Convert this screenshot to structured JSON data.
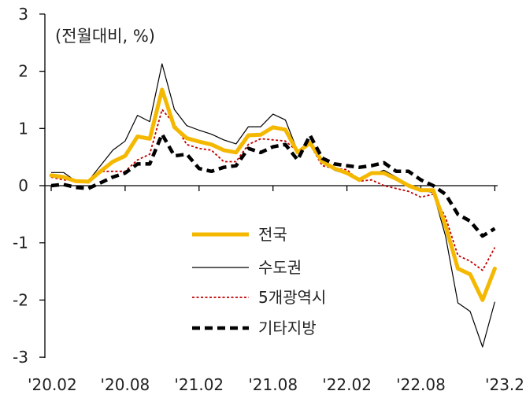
{
  "chart_data": {
    "type": "line",
    "unit_label": "(전월대비, %)",
    "y_ticks": [
      "3",
      "2",
      "1",
      "0",
      "-1",
      "-2",
      "-3"
    ],
    "y_tick_values": [
      3,
      2,
      1,
      0,
      -1,
      -2,
      -3
    ],
    "ylim": [
      -3,
      3
    ],
    "x_tick_labels": [
      "'20.02",
      "'20.08",
      "'21.02",
      "'21.08",
      "'22.02",
      "'22.08",
      "'23.2"
    ],
    "x_tick_index": [
      0,
      6,
      12,
      18,
      24,
      30,
      36
    ],
    "legend_position": "center",
    "series": [
      {
        "name": "전국",
        "style": "thick-solid",
        "color": "#F5B800",
        "values": [
          0.18,
          0.15,
          0.08,
          0.07,
          0.25,
          0.42,
          0.52,
          0.86,
          0.82,
          1.68,
          1.02,
          0.83,
          0.77,
          0.72,
          0.62,
          0.58,
          0.88,
          0.89,
          1.02,
          0.98,
          0.58,
          0.75,
          0.42,
          0.3,
          0.22,
          0.1,
          0.22,
          0.22,
          0.12,
          0.0,
          -0.08,
          -0.08,
          -0.7,
          -1.45,
          -1.55,
          -2.0,
          -1.45
        ]
      },
      {
        "name": "수도권",
        "style": "thin-solid",
        "color": "#000000",
        "values": [
          0.23,
          0.23,
          0.08,
          0.08,
          0.35,
          0.62,
          0.78,
          1.23,
          1.12,
          2.13,
          1.33,
          1.05,
          0.97,
          0.9,
          0.8,
          0.73,
          1.03,
          1.03,
          1.25,
          1.15,
          0.6,
          0.75,
          0.4,
          0.27,
          0.2,
          0.08,
          0.2,
          0.27,
          0.15,
          0.02,
          -0.08,
          -0.12,
          -0.88,
          -2.05,
          -2.2,
          -2.82,
          -2.03
        ]
      },
      {
        "name": "5개광역시",
        "style": "dotted",
        "color": "#C00000",
        "values": [
          0.15,
          0.1,
          0.1,
          0.05,
          0.25,
          0.25,
          0.25,
          0.45,
          0.55,
          1.33,
          1.08,
          0.72,
          0.65,
          0.62,
          0.42,
          0.42,
          0.72,
          0.82,
          0.8,
          0.78,
          0.6,
          0.72,
          0.35,
          0.3,
          0.28,
          0.08,
          0.1,
          0.0,
          -0.05,
          -0.1,
          -0.2,
          -0.15,
          -0.55,
          -1.22,
          -1.32,
          -1.48,
          -1.08
        ]
      },
      {
        "name": "기타지방",
        "style": "dashed",
        "color": "#000000",
        "values": [
          0.0,
          0.02,
          -0.03,
          -0.05,
          0.05,
          0.15,
          0.22,
          0.38,
          0.38,
          0.9,
          0.52,
          0.55,
          0.3,
          0.25,
          0.32,
          0.35,
          0.65,
          0.58,
          0.68,
          0.72,
          0.45,
          0.88,
          0.48,
          0.38,
          0.35,
          0.32,
          0.35,
          0.4,
          0.25,
          0.25,
          0.1,
          0.0,
          -0.15,
          -0.5,
          -0.62,
          -0.88,
          -0.75
        ]
      }
    ]
  }
}
